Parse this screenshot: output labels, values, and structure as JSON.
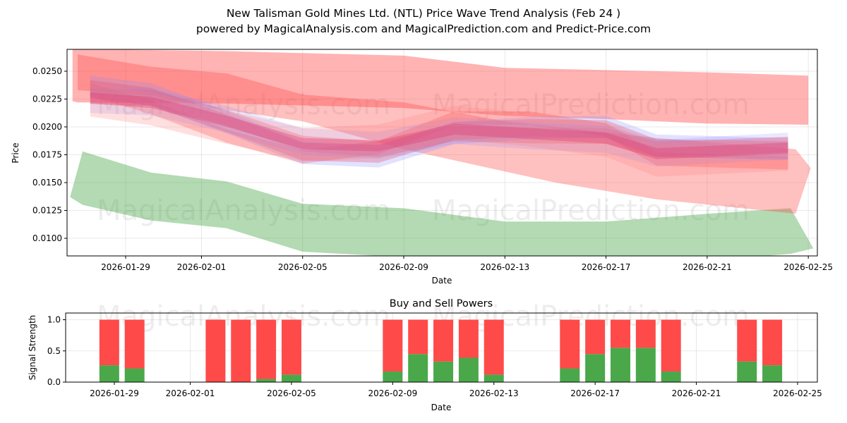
{
  "title": "New Talisman Gold Mines Ltd. (NTL) Price Wave Trend Analysis (Feb 24 )",
  "subtitle": "powered by MagicalAnalysis.com and MagicalPrediction.com and Predict-Price.com",
  "watermarks": [
    "MagicalAnalysis.com",
    "MagicalPrediction.com"
  ],
  "colors": {
    "red": "#ff4a4a",
    "pink": "#ff8080",
    "blue": "#8a8aff",
    "green": "#4aa84a"
  },
  "chart_data": [
    {
      "type": "area",
      "title": "",
      "xlabel": "Date",
      "ylabel": "Price",
      "base_date": "2026-01-29",
      "xlim_days": [
        -2.3,
        27.4
      ],
      "ylim": [
        0.00842,
        0.02696
      ],
      "x_ticks": [
        "2026-01-29",
        "2026-02-01",
        "2026-02-05",
        "2026-02-09",
        "2026-02-13",
        "2026-02-17",
        "2026-02-21",
        "2026-02-25"
      ],
      "x_tick_days": [
        0,
        3,
        7,
        11,
        15,
        19,
        23,
        27
      ],
      "y_ticks": [
        "0.0100",
        "0.0125",
        "0.0150",
        "0.0175",
        "0.0200",
        "0.0225",
        "0.0250"
      ],
      "grid": true,
      "bands": [
        {
          "name": "green-band",
          "color": "#4aa84a",
          "opacity": 0.42,
          "days": [
            -2.2,
            -1.7,
            1,
            4,
            7,
            11,
            15,
            19,
            23,
            26.3,
            27.2
          ],
          "low": [
            0.0137,
            0.013,
            0.0116,
            0.0109,
            0.0088,
            0.0083,
            0.0077,
            0.0077,
            0.008,
            0.0086,
            0.0091
          ],
          "high": [
            0.0137,
            0.0178,
            0.0159,
            0.0151,
            0.0131,
            0.0127,
            0.0115,
            0.0115,
            0.0122,
            0.0127,
            0.0091
          ]
        },
        {
          "name": "wide-band-1",
          "color": "#ff4a4a",
          "opacity": 0.42,
          "days": [
            -2.1,
            -1.9,
            4,
            11,
            15,
            19,
            23,
            27
          ],
          "low": [
            0.0223,
            0.0222,
            0.0221,
            0.0217,
            0.021,
            0.0207,
            0.0203,
            0.0202
          ],
          "high": [
            0.027,
            0.027,
            0.0268,
            0.0264,
            0.0253,
            0.0251,
            0.0249,
            0.0246
          ],
          "hi_days_same": true
        },
        {
          "name": "wide-band-2",
          "color": "#ff4a4a",
          "opacity": 0.35,
          "days": [
            -1.9,
            1,
            4,
            7,
            11,
            15,
            17,
            21,
            26.5,
            27.1
          ],
          "low": [
            0.0233,
            0.0228,
            0.0215,
            0.0205,
            0.018,
            0.016,
            0.015,
            0.0135,
            0.0122,
            0.0163
          ],
          "high": [
            0.0265,
            0.0254,
            0.0248,
            0.0229,
            0.0222,
            0.0205,
            0.02,
            0.019,
            0.018,
            0.0163
          ]
        }
      ],
      "center_line": {
        "days": [
          -1.4,
          1,
          4,
          7,
          10,
          13,
          16,
          19,
          21,
          26.2
        ],
        "values": [
          0.0226,
          0.0222,
          0.0205,
          0.0185,
          0.0183,
          0.0198,
          0.0194,
          0.019,
          0.0176,
          0.0181
        ]
      },
      "narrow_bands": [
        {
          "color": "#ff4a4a",
          "opacity": 0.35,
          "offset": 0.0008,
          "width": 0.0016
        },
        {
          "color": "#ff4a4a",
          "opacity": 0.3,
          "offset": 0.0014,
          "width": 0.0012
        },
        {
          "color": "#ff4a4a",
          "opacity": 0.3,
          "offset": -0.0004,
          "width": 0.0014
        },
        {
          "color": "#8a8aff",
          "opacity": 0.25,
          "offset": -0.001,
          "width": 0.002
        },
        {
          "color": "#8a8aff",
          "opacity": 0.2,
          "offset": 0.0002,
          "width": 0.0024
        },
        {
          "color": "#ff8080",
          "opacity": 0.25,
          "offset": -0.0006,
          "width": 0.003
        },
        {
          "color": "#e0306a",
          "opacity": 0.3,
          "offset": 0.0,
          "width": 0.001
        }
      ]
    },
    {
      "type": "bar",
      "title": "Buy and Sell Powers",
      "xlabel": "Date",
      "ylabel": "Signal Strength",
      "ylim": [
        0,
        1.05
      ],
      "y_ticks": [
        "0.0",
        "0.5",
        "1.0"
      ],
      "x_ticks": [
        "2026-01-29",
        "2026-02-01",
        "2026-02-05",
        "2026-02-09",
        "2026-02-13",
        "2026-02-17",
        "2026-02-21",
        "2026-02-25"
      ],
      "x_tick_days": [
        0,
        3,
        7,
        11,
        15,
        19,
        23,
        27
      ],
      "bar_days": [
        -0.2,
        0.8,
        4,
        5,
        6,
        7,
        11,
        12,
        13,
        14,
        15,
        18,
        19,
        20,
        21,
        22,
        25,
        26
      ],
      "categories": [
        "2026-01-29",
        "2026-01-30",
        "2026-02-02",
        "2026-02-03",
        "2026-02-04",
        "2026-02-05",
        "2026-02-09",
        "2026-02-10",
        "2026-02-11",
        "2026-02-12",
        "2026-02-13",
        "2026-02-16",
        "2026-02-17",
        "2026-02-18",
        "2026-02-19",
        "2026-02-20",
        "2026-02-23",
        "2026-02-24"
      ],
      "series": [
        {
          "name": "Buy",
          "color": "#4aa84a",
          "values": [
            0.27,
            0.22,
            0,
            0,
            0.05,
            0.12,
            0.17,
            0.45,
            0.33,
            0.39,
            0.12,
            0.22,
            0.45,
            0.55,
            0.55,
            0.17,
            0.33,
            0.27
          ]
        },
        {
          "name": "Sell",
          "color": "#ff4a4a",
          "values": [
            0.73,
            0.78,
            1,
            1,
            0.95,
            0.88,
            0.83,
            0.55,
            0.67,
            0.61,
            0.88,
            0.78,
            0.55,
            0.45,
            0.45,
            0.83,
            0.67,
            0.73
          ]
        }
      ]
    }
  ]
}
